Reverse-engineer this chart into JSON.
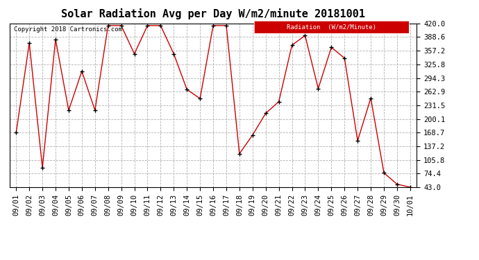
{
  "title": "Solar Radiation Avg per Day W/m2/minute 20181001",
  "copyright": "Copyright 2018 Cartronics.com",
  "legend_label": "Radiation  (W/m2/Minute)",
  "dates": [
    "09/01",
    "09/02",
    "09/03",
    "09/04",
    "09/05",
    "09/06",
    "09/07",
    "09/08",
    "09/09",
    "09/10",
    "09/11",
    "09/12",
    "09/13",
    "09/14",
    "09/15",
    "09/16",
    "09/17",
    "09/18",
    "09/19",
    "09/20",
    "09/21",
    "09/22",
    "09/23",
    "09/24",
    "09/25",
    "09/26",
    "09/27",
    "09/28",
    "09/29",
    "09/30",
    "10/01"
  ],
  "values": [
    168.7,
    375.0,
    88.0,
    383.0,
    220.0,
    310.0,
    220.0,
    415.0,
    415.0,
    350.0,
    415.0,
    415.0,
    350.0,
    268.0,
    247.0,
    415.0,
    415.0,
    120.0,
    163.0,
    213.0,
    240.0,
    370.0,
    392.0,
    270.0,
    365.0,
    340.0,
    150.0,
    248.0,
    76.0,
    50.0,
    43.0
  ],
  "line_color": "#cc0000",
  "marker": "+",
  "marker_color": "#000000",
  "bg_color": "#ffffff",
  "grid_color": "#b0b0b0",
  "ylim": [
    43.0,
    420.0
  ],
  "yticks": [
    43.0,
    74.4,
    105.8,
    137.2,
    168.7,
    200.1,
    231.5,
    262.9,
    294.3,
    325.8,
    357.2,
    388.6,
    420.0
  ],
  "title_fontsize": 11,
  "axis_fontsize": 7.5,
  "legend_bg": "#cc0000",
  "legend_text_color": "#ffffff"
}
